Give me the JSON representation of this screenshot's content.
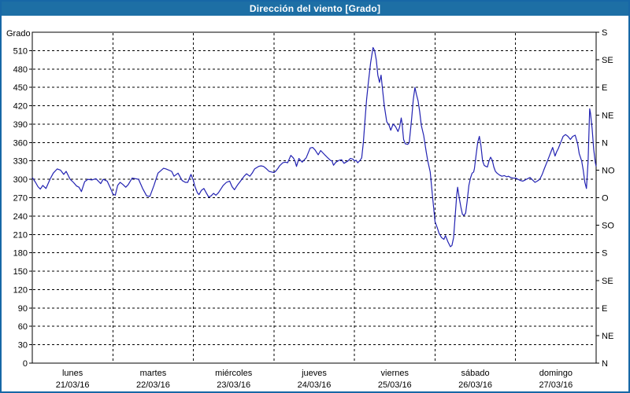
{
  "window": {
    "title": "Dirección del viento [Grado]"
  },
  "colors": {
    "frame_blue": "#1767a6",
    "titlebar_blue": "#1d6fa5",
    "title_text": "#ffffff",
    "line_blue": "#2222b2",
    "grid_black": "#000000",
    "background": "#ffffff"
  },
  "chart_data": {
    "type": "line",
    "title": "Dirección del viento [Grado]",
    "ylabel": "Grado",
    "ylim": [
      0,
      540
    ],
    "xlim_days": [
      0,
      7
    ],
    "grid": "dashed",
    "legend_position": "none",
    "y_left_ticks": [
      0,
      30,
      60,
      90,
      120,
      150,
      180,
      210,
      240,
      270,
      300,
      330,
      360,
      390,
      420,
      450,
      480,
      510
    ],
    "y_right_ticks": [
      {
        "value": 540,
        "label": "S"
      },
      {
        "value": 495,
        "label": "SE"
      },
      {
        "value": 450,
        "label": "E"
      },
      {
        "value": 405,
        "label": "NE"
      },
      {
        "value": 360,
        "label": "N"
      },
      {
        "value": 315,
        "label": "NO"
      },
      {
        "value": 270,
        "label": "O"
      },
      {
        "value": 225,
        "label": "SO"
      },
      {
        "value": 180,
        "label": "S"
      },
      {
        "value": 135,
        "label": "SE"
      },
      {
        "value": 90,
        "label": "E"
      },
      {
        "value": 45,
        "label": "NE"
      },
      {
        "value": 0,
        "label": "N"
      }
    ],
    "x_days": [
      {
        "name": "lunes",
        "date": "21/03/16"
      },
      {
        "name": "martes",
        "date": "22/03/16"
      },
      {
        "name": "miércoles",
        "date": "23/03/16"
      },
      {
        "name": "jueves",
        "date": "24/03/16"
      },
      {
        "name": "viernes",
        "date": "25/03/16"
      },
      {
        "name": "sábado",
        "date": "26/03/16"
      },
      {
        "name": "domingo",
        "date": "27/03/16"
      }
    ],
    "series": [
      {
        "name": "Dirección del viento",
        "x_unit": "days_from_21_03_16",
        "y_unit": "grados",
        "points": [
          [
            0.0,
            303
          ],
          [
            0.04,
            295
          ],
          [
            0.07,
            288
          ],
          [
            0.1,
            284
          ],
          [
            0.13,
            290
          ],
          [
            0.17,
            285
          ],
          [
            0.22,
            300
          ],
          [
            0.26,
            310
          ],
          [
            0.31,
            317
          ],
          [
            0.35,
            315
          ],
          [
            0.39,
            308
          ],
          [
            0.42,
            313
          ],
          [
            0.47,
            300
          ],
          [
            0.51,
            295
          ],
          [
            0.55,
            289
          ],
          [
            0.58,
            287
          ],
          [
            0.61,
            280
          ],
          [
            0.65,
            296
          ],
          [
            0.69,
            300
          ],
          [
            0.74,
            299
          ],
          [
            0.79,
            301
          ],
          [
            0.85,
            293
          ],
          [
            0.88,
            300
          ],
          [
            0.93,
            297
          ],
          [
            0.98,
            283
          ],
          [
            1.0,
            276
          ],
          [
            1.03,
            274
          ],
          [
            1.06,
            290
          ],
          [
            1.09,
            295
          ],
          [
            1.12,
            292
          ],
          [
            1.16,
            287
          ],
          [
            1.19,
            291
          ],
          [
            1.24,
            302
          ],
          [
            1.28,
            301
          ],
          [
            1.32,
            300
          ],
          [
            1.37,
            285
          ],
          [
            1.42,
            273
          ],
          [
            1.46,
            272
          ],
          [
            1.51,
            290
          ],
          [
            1.56,
            310
          ],
          [
            1.63,
            318
          ],
          [
            1.66,
            317
          ],
          [
            1.73,
            313
          ],
          [
            1.76,
            305
          ],
          [
            1.81,
            310
          ],
          [
            1.86,
            298
          ],
          [
            1.9,
            295
          ],
          [
            1.93,
            295
          ],
          [
            1.97,
            308
          ],
          [
            2.0,
            298
          ],
          [
            2.02,
            288
          ],
          [
            2.05,
            278
          ],
          [
            2.07,
            275
          ],
          [
            2.1,
            282
          ],
          [
            2.13,
            285
          ],
          [
            2.16,
            278
          ],
          [
            2.19,
            271
          ],
          [
            2.22,
            273
          ],
          [
            2.25,
            277
          ],
          [
            2.28,
            274
          ],
          [
            2.31,
            278
          ],
          [
            2.37,
            290
          ],
          [
            2.41,
            295
          ],
          [
            2.45,
            297
          ],
          [
            2.48,
            288
          ],
          [
            2.51,
            283
          ],
          [
            2.55,
            291
          ],
          [
            2.59,
            298
          ],
          [
            2.63,
            305
          ],
          [
            2.66,
            309
          ],
          [
            2.7,
            305
          ],
          [
            2.73,
            310
          ],
          [
            2.76,
            317
          ],
          [
            2.81,
            321
          ],
          [
            2.84,
            322
          ],
          [
            2.87,
            321
          ],
          [
            2.9,
            318
          ],
          [
            2.94,
            313
          ],
          [
            2.97,
            312
          ],
          [
            3.0,
            311
          ],
          [
            3.02,
            313
          ],
          [
            3.05,
            318
          ],
          [
            3.07,
            322
          ],
          [
            3.11,
            327
          ],
          [
            3.14,
            328
          ],
          [
            3.17,
            327
          ],
          [
            3.21,
            339
          ],
          [
            3.24,
            335
          ],
          [
            3.26,
            330
          ],
          [
            3.28,
            321
          ],
          [
            3.31,
            334
          ],
          [
            3.35,
            328
          ],
          [
            3.4,
            335
          ],
          [
            3.45,
            351
          ],
          [
            3.48,
            352
          ],
          [
            3.51,
            348
          ],
          [
            3.55,
            340
          ],
          [
            3.58,
            347
          ],
          [
            3.63,
            340
          ],
          [
            3.66,
            336
          ],
          [
            3.7,
            331
          ],
          [
            3.72,
            330
          ],
          [
            3.74,
            323
          ],
          [
            3.77,
            328
          ],
          [
            3.81,
            331
          ],
          [
            3.84,
            332
          ],
          [
            3.87,
            326
          ],
          [
            3.92,
            330
          ],
          [
            3.95,
            334
          ],
          [
            3.98,
            333
          ],
          [
            4.0,
            330
          ],
          [
            4.02,
            331
          ],
          [
            4.04,
            327
          ],
          [
            4.07,
            331
          ],
          [
            4.09,
            335
          ],
          [
            4.11,
            360
          ],
          [
            4.13,
            395
          ],
          [
            4.15,
            430
          ],
          [
            4.17,
            455
          ],
          [
            4.2,
            490
          ],
          [
            4.23,
            515
          ],
          [
            4.25,
            510
          ],
          [
            4.27,
            495
          ],
          [
            4.29,
            470
          ],
          [
            4.31,
            458
          ],
          [
            4.33,
            470
          ],
          [
            4.35,
            445
          ],
          [
            4.37,
            420
          ],
          [
            4.4,
            394
          ],
          [
            4.43,
            388
          ],
          [
            4.45,
            380
          ],
          [
            4.48,
            390
          ],
          [
            4.51,
            386
          ],
          [
            4.54,
            378
          ],
          [
            4.56,
            385
          ],
          [
            4.58,
            400
          ],
          [
            4.59,
            392
          ],
          [
            4.61,
            365
          ],
          [
            4.63,
            358
          ],
          [
            4.66,
            357
          ],
          [
            4.68,
            360
          ],
          [
            4.71,
            400
          ],
          [
            4.73,
            430
          ],
          [
            4.75,
            450
          ],
          [
            4.77,
            438
          ],
          [
            4.79,
            428
          ],
          [
            4.81,
            410
          ],
          [
            4.83,
            388
          ],
          [
            4.86,
            371
          ],
          [
            4.89,
            345
          ],
          [
            4.91,
            330
          ],
          [
            4.94,
            312
          ],
          [
            4.97,
            270
          ],
          [
            5.0,
            231
          ],
          [
            5.03,
            220
          ],
          [
            5.05,
            212
          ],
          [
            5.08,
            205
          ],
          [
            5.11,
            202
          ],
          [
            5.13,
            208
          ],
          [
            5.16,
            198
          ],
          [
            5.19,
            190
          ],
          [
            5.21,
            192
          ],
          [
            5.23,
            205
          ],
          [
            5.25,
            240
          ],
          [
            5.27,
            275
          ],
          [
            5.28,
            287
          ],
          [
            5.3,
            270
          ],
          [
            5.32,
            255
          ],
          [
            5.34,
            243
          ],
          [
            5.36,
            241
          ],
          [
            5.38,
            245
          ],
          [
            5.4,
            265
          ],
          [
            5.42,
            290
          ],
          [
            5.44,
            302
          ],
          [
            5.46,
            310
          ],
          [
            5.48,
            312
          ],
          [
            5.49,
            318
          ],
          [
            5.51,
            340
          ],
          [
            5.53,
            360
          ],
          [
            5.55,
            370
          ],
          [
            5.57,
            355
          ],
          [
            5.59,
            330
          ],
          [
            5.61,
            323
          ],
          [
            5.63,
            321
          ],
          [
            5.65,
            320
          ],
          [
            5.67,
            330
          ],
          [
            5.69,
            336
          ],
          [
            5.71,
            331
          ],
          [
            5.73,
            320
          ],
          [
            5.75,
            313
          ],
          [
            5.77,
            310
          ],
          [
            5.8,
            307
          ],
          [
            5.83,
            305
          ],
          [
            5.86,
            306
          ],
          [
            5.89,
            304
          ],
          [
            5.91,
            305
          ],
          [
            5.94,
            303
          ],
          [
            5.97,
            302
          ],
          [
            6.0,
            302
          ],
          [
            6.03,
            300
          ],
          [
            6.06,
            298
          ],
          [
            6.09,
            297
          ],
          [
            6.12,
            299
          ],
          [
            6.15,
            301
          ],
          [
            6.18,
            303
          ],
          [
            6.21,
            299
          ],
          [
            6.24,
            295
          ],
          [
            6.27,
            297
          ],
          [
            6.3,
            300
          ],
          [
            6.33,
            308
          ],
          [
            6.35,
            315
          ],
          [
            6.38,
            325
          ],
          [
            6.41,
            335
          ],
          [
            6.44,
            345
          ],
          [
            6.46,
            352
          ],
          [
            6.49,
            338
          ],
          [
            6.51,
            345
          ],
          [
            6.53,
            350
          ],
          [
            6.56,
            360
          ],
          [
            6.59,
            370
          ],
          [
            6.62,
            373
          ],
          [
            6.65,
            370
          ],
          [
            6.68,
            365
          ],
          [
            6.71,
            370
          ],
          [
            6.74,
            372
          ],
          [
            6.77,
            358
          ],
          [
            6.79,
            342
          ],
          [
            6.82,
            330
          ],
          [
            6.84,
            315
          ],
          [
            6.86,
            295
          ],
          [
            6.88,
            285
          ],
          [
            6.9,
            330
          ],
          [
            6.92,
            415
          ],
          [
            6.93,
            408
          ],
          [
            6.95,
            383
          ],
          [
            6.97,
            349
          ],
          [
            6.99,
            327
          ],
          [
            7.0,
            321
          ]
        ]
      }
    ]
  }
}
